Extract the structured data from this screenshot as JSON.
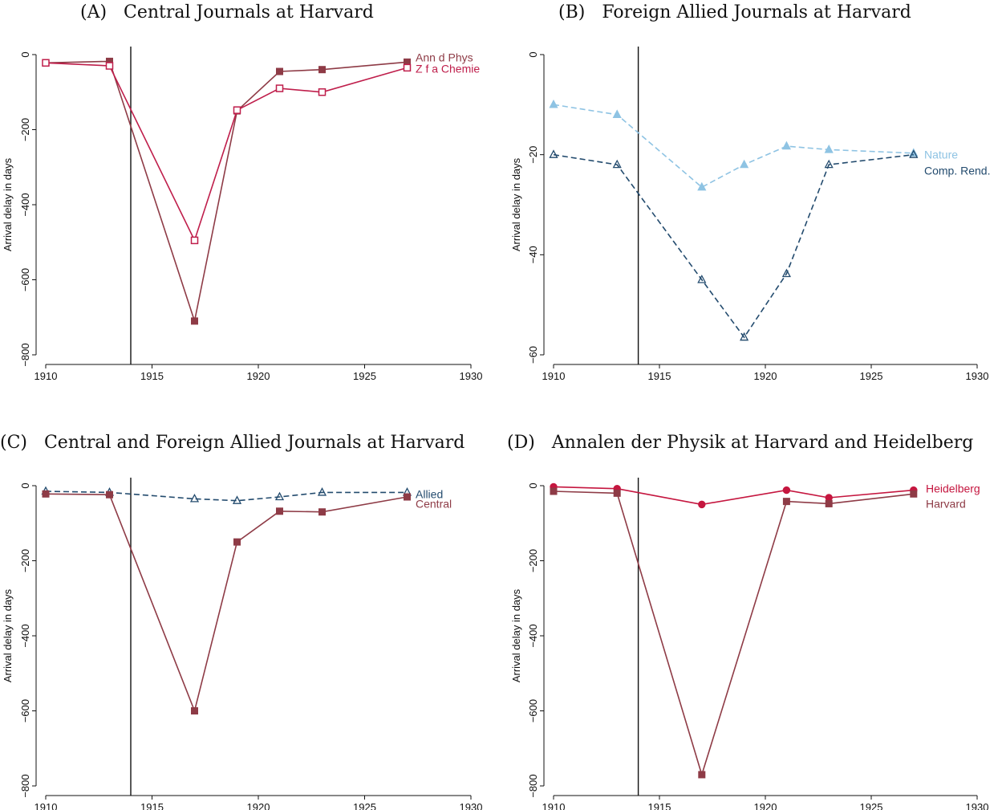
{
  "chart_data": [
    {
      "panel": "A",
      "type": "line",
      "title": "(A)   Central Journals at Harvard",
      "xlabel": "",
      "ylabel": "Arrival delay in days",
      "xlim": [
        1910,
        1930
      ],
      "ylim": [
        -800,
        0
      ],
      "xticks": [
        1910,
        1915,
        1920,
        1925,
        1930
      ],
      "yticks": [
        0,
        -200,
        -400,
        -600,
        -800
      ],
      "vline": 1914,
      "legend_placement": "right",
      "series": [
        {
          "name": "Ann d Phys",
          "color": "#8e3b46",
          "marker": "square-filled",
          "dash": "solid",
          "x": [
            1910,
            1913,
            1917,
            1919,
            1921,
            1923,
            1927
          ],
          "y": [
            -22,
            -18,
            -710,
            -150,
            -45,
            -40,
            -20
          ]
        },
        {
          "name": "Z f a Chemie",
          "color": "#bf1e4b",
          "marker": "square-open",
          "dash": "solid",
          "x": [
            1910,
            1913,
            1917,
            1919,
            1921,
            1923,
            1927
          ],
          "y": [
            -22,
            -30,
            -495,
            -148,
            -90,
            -100,
            -35
          ]
        }
      ]
    },
    {
      "panel": "B",
      "type": "line",
      "title": "(B)   Foreign Allied Journals at Harvard",
      "xlabel": "",
      "ylabel": "Arrival delay in days",
      "xlim": [
        1910,
        1930
      ],
      "ylim": [
        -60,
        0
      ],
      "xticks": [
        1910,
        1915,
        1920,
        1925,
        1930
      ],
      "yticks": [
        0,
        -20,
        -40,
        -60
      ],
      "vline": 1914,
      "legend_placement": "right",
      "series": [
        {
          "name": "Nature",
          "color": "#8ec3e3",
          "marker": "triangle-filled",
          "dash": "dashed",
          "x": [
            1910,
            1913,
            1917,
            1919,
            1921,
            1923,
            1927
          ],
          "y": [
            -10,
            -12,
            -26.5,
            -22,
            -18.3,
            -19,
            -19.7
          ]
        },
        {
          "name": "Comp. Rend.",
          "color": "#234b6e",
          "marker": "triangle-open",
          "dash": "dashed",
          "x": [
            1910,
            1913,
            1917,
            1919,
            1921,
            1923,
            1927
          ],
          "y": [
            -20,
            -22,
            -45,
            -56.5,
            -43.8,
            -22,
            -20
          ]
        }
      ]
    },
    {
      "panel": "C",
      "type": "line",
      "title": "(C)   Central and Foreign Allied Journals at Harvard",
      "xlabel": "",
      "ylabel": "Arrival delay in days",
      "xlim": [
        1910,
        1930
      ],
      "ylim": [
        -800,
        0
      ],
      "xticks": [
        1910,
        1915,
        1920,
        1925,
        1930
      ],
      "yticks": [
        0,
        -200,
        -400,
        -600,
        -800
      ],
      "vline": 1914,
      "legend_placement": "right",
      "series": [
        {
          "name": "Allied",
          "color": "#234b6e",
          "marker": "triangle-open",
          "dash": "dashed",
          "x": [
            1910,
            1913,
            1917,
            1919,
            1921,
            1923,
            1927
          ],
          "y": [
            -15,
            -18,
            -35,
            -40,
            -30,
            -18,
            -18
          ]
        },
        {
          "name": "Central",
          "color": "#8e3b46",
          "marker": "square-filled",
          "dash": "solid",
          "x": [
            1910,
            1913,
            1917,
            1919,
            1921,
            1923,
            1927
          ],
          "y": [
            -22,
            -24,
            -600,
            -150,
            -68,
            -70,
            -30
          ]
        }
      ]
    },
    {
      "panel": "D",
      "type": "line",
      "title": "(D)   Annalen der Physik at Harvard and Heidelberg",
      "xlabel": "",
      "ylabel": "Arrival delay in days",
      "xlim": [
        1910,
        1930
      ],
      "ylim": [
        -800,
        0
      ],
      "xticks": [
        1910,
        1915,
        1920,
        1925,
        1930
      ],
      "yticks": [
        0,
        -200,
        -400,
        -600,
        -800
      ],
      "vline": 1914,
      "legend_placement": "right",
      "series": [
        {
          "name": "Heidelberg",
          "color": "#c5163f",
          "marker": "circle-filled",
          "dash": "solid",
          "x": [
            1910,
            1913,
            1917,
            1921,
            1923,
            1927
          ],
          "y": [
            -3,
            -8,
            -50,
            -12,
            -32,
            -12
          ]
        },
        {
          "name": "Harvard",
          "color": "#8e3b46",
          "marker": "square-filled",
          "dash": "solid",
          "x": [
            1910,
            1913,
            1917,
            1921,
            1923,
            1927
          ],
          "y": [
            -15,
            -20,
            -770,
            -42,
            -48,
            -22
          ]
        }
      ]
    }
  ]
}
